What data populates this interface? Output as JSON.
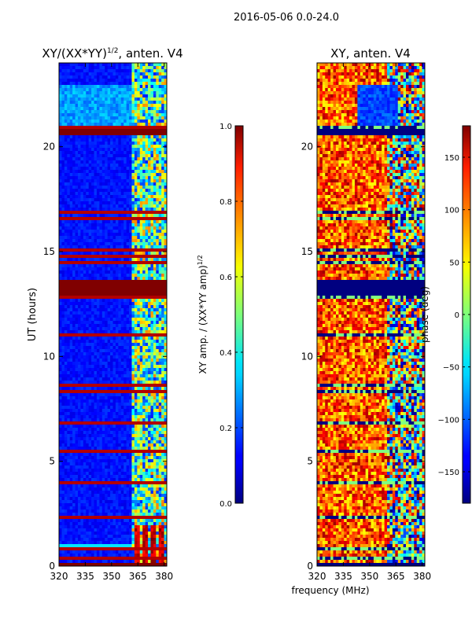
{
  "suptitle": "2016-05-06 0.0-24.0",
  "chart_data": [
    {
      "type": "heatmap",
      "title_main": "XY/(XX*YY)",
      "title_exp": "1/2",
      "title_suffix": ", anten. V4",
      "xlabel": "",
      "ylabel": "UT (hours)",
      "xlim": [
        320,
        381.5
      ],
      "ylim": [
        0,
        24
      ],
      "xticks": [
        320,
        335,
        350,
        365,
        380
      ],
      "yticks": [
        0,
        5,
        10,
        15,
        20
      ],
      "colorbar": {
        "label_main": "XY amp. / (XX*YY amp)",
        "label_exp": "1/2",
        "range": [
          0.0,
          1.0
        ],
        "ticks": [
          "0.0",
          "0.2",
          "0.4",
          "0.6",
          "0.8",
          "1.0"
        ],
        "tick_values": [
          0.0,
          0.2,
          0.4,
          0.6,
          0.8,
          1.0
        ]
      },
      "flagged_bands_hours": [
        [
          20.6,
          20.9
        ],
        [
          12.9,
          13.6
        ],
        [
          0.0,
          0.1
        ]
      ],
      "active_band_start_mhz": 362
    },
    {
      "type": "heatmap",
      "title": "XY, anten. V4",
      "xlabel": "frequency (MHz)",
      "ylabel": "",
      "xlim": [
        320,
        381.5
      ],
      "ylim": [
        0,
        24
      ],
      "xticks": [
        320,
        335,
        350,
        365,
        380
      ],
      "yticks": [
        0,
        5,
        10,
        15,
        20
      ],
      "colorbar": {
        "label": "phase (deg)",
        "range": [
          -180,
          180
        ],
        "ticks": [
          "150",
          "100",
          "50",
          "0",
          "−50",
          "−100",
          "−150"
        ],
        "tick_values": [
          150,
          100,
          50,
          0,
          -50,
          -100,
          -150
        ]
      },
      "flagged_bands_hours": [
        [
          20.6,
          20.9
        ],
        [
          12.9,
          13.6
        ],
        [
          0.0,
          0.1
        ]
      ]
    }
  ]
}
